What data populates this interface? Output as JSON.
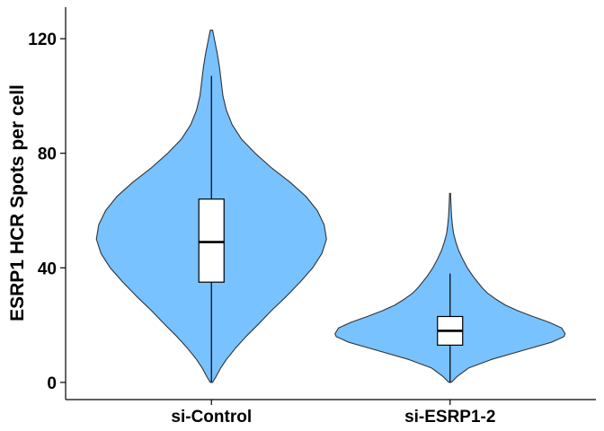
{
  "chart_data": {
    "type": "violin",
    "title": "",
    "xlabel": "",
    "ylabel": "ESRP1 HCR Spots per cell",
    "ylim": [
      -6,
      131
    ],
    "yticks": [
      0,
      40,
      80,
      120
    ],
    "categories": [
      "si-Control",
      "si-ESRP1-2"
    ],
    "grid": false,
    "legend": "none",
    "fill_color": "#78C2FF",
    "outline_color": "#333333",
    "series": [
      {
        "category": "si-Control",
        "box": {
          "whisker_low": 0,
          "q1": 35,
          "median": 49,
          "q3": 64,
          "whisker_high": 107
        },
        "max": 123,
        "density": [
          [
            0,
            0.01
          ],
          [
            2,
            0.04
          ],
          [
            5,
            0.08
          ],
          [
            8,
            0.13
          ],
          [
            12,
            0.21
          ],
          [
            16,
            0.3
          ],
          [
            20,
            0.4
          ],
          [
            25,
            0.52
          ],
          [
            30,
            0.65
          ],
          [
            35,
            0.77
          ],
          [
            40,
            0.88
          ],
          [
            45,
            0.96
          ],
          [
            50,
            1.0
          ],
          [
            55,
            0.98
          ],
          [
            60,
            0.92
          ],
          [
            65,
            0.82
          ],
          [
            70,
            0.68
          ],
          [
            75,
            0.52
          ],
          [
            80,
            0.38
          ],
          [
            85,
            0.26
          ],
          [
            90,
            0.18
          ],
          [
            95,
            0.13
          ],
          [
            100,
            0.1
          ],
          [
            105,
            0.085
          ],
          [
            110,
            0.07
          ],
          [
            115,
            0.05
          ],
          [
            118,
            0.035
          ],
          [
            121,
            0.02
          ],
          [
            123,
            0.01
          ]
        ]
      },
      {
        "category": "si-ESRP1-2",
        "box": {
          "whisker_low": 0,
          "q1": 13,
          "median": 18,
          "q3": 23,
          "whisker_high": 38
        },
        "max": 66,
        "density": [
          [
            0,
            0.01
          ],
          [
            2,
            0.06
          ],
          [
            5,
            0.16
          ],
          [
            8,
            0.36
          ],
          [
            11,
            0.62
          ],
          [
            14,
            0.88
          ],
          [
            16,
            0.99
          ],
          [
            17,
            1.0
          ],
          [
            19,
            0.97
          ],
          [
            21,
            0.86
          ],
          [
            23,
            0.72
          ],
          [
            25,
            0.59
          ],
          [
            27,
            0.48
          ],
          [
            29,
            0.4
          ],
          [
            31,
            0.33
          ],
          [
            33,
            0.28
          ],
          [
            35,
            0.24
          ],
          [
            37,
            0.2
          ],
          [
            40,
            0.15
          ],
          [
            43,
            0.11
          ],
          [
            46,
            0.075
          ],
          [
            49,
            0.05
          ],
          [
            52,
            0.03
          ],
          [
            55,
            0.02
          ],
          [
            58,
            0.013
          ],
          [
            62,
            0.008
          ],
          [
            66,
            0.004
          ]
        ]
      }
    ]
  }
}
